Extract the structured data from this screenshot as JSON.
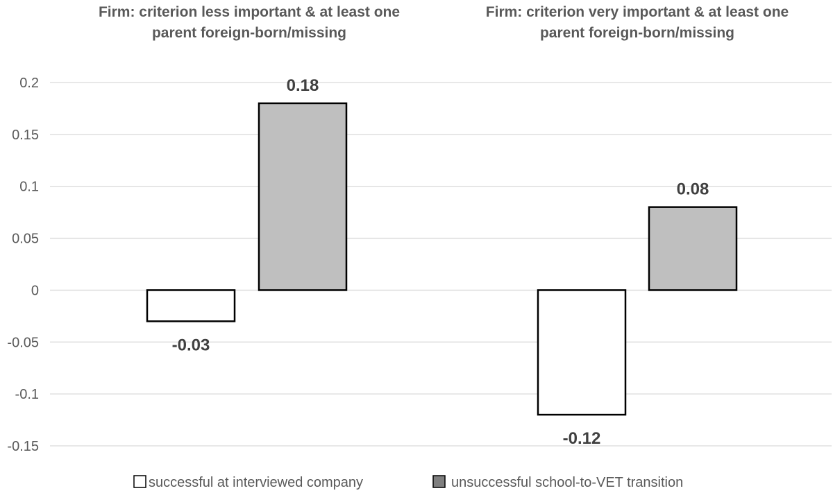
{
  "chart_data": {
    "type": "bar",
    "categories": [
      [
        "Firm: criterion less important & at least one",
        "parent foreign-born/missing"
      ],
      [
        "Firm: criterion very important & at least one",
        "parent foreign-born/missing"
      ]
    ],
    "series": [
      {
        "name": "successful at interviewed company",
        "values": [
          -0.03,
          -0.12
        ],
        "color": "#ffffff"
      },
      {
        "name": "unsuccessful school-to-VET transition",
        "values": [
          0.18,
          0.08
        ],
        "color": "#bfbfbf"
      }
    ],
    "data_labels": [
      [
        "-0.03",
        "-0.12"
      ],
      [
        "0.18",
        "0.08"
      ]
    ],
    "y_ticks": [
      "0.2",
      "0.15",
      "0.1",
      "0.05",
      "0",
      "-0.05",
      "-0.1",
      "-0.15"
    ],
    "ylim": [
      -0.15,
      0.2
    ],
    "grid": true,
    "legend_position": "bottom",
    "colors": {
      "grid": "#d9d9d9",
      "text": "#595959",
      "label": "#404040",
      "bar_stroke": "#000000"
    }
  }
}
